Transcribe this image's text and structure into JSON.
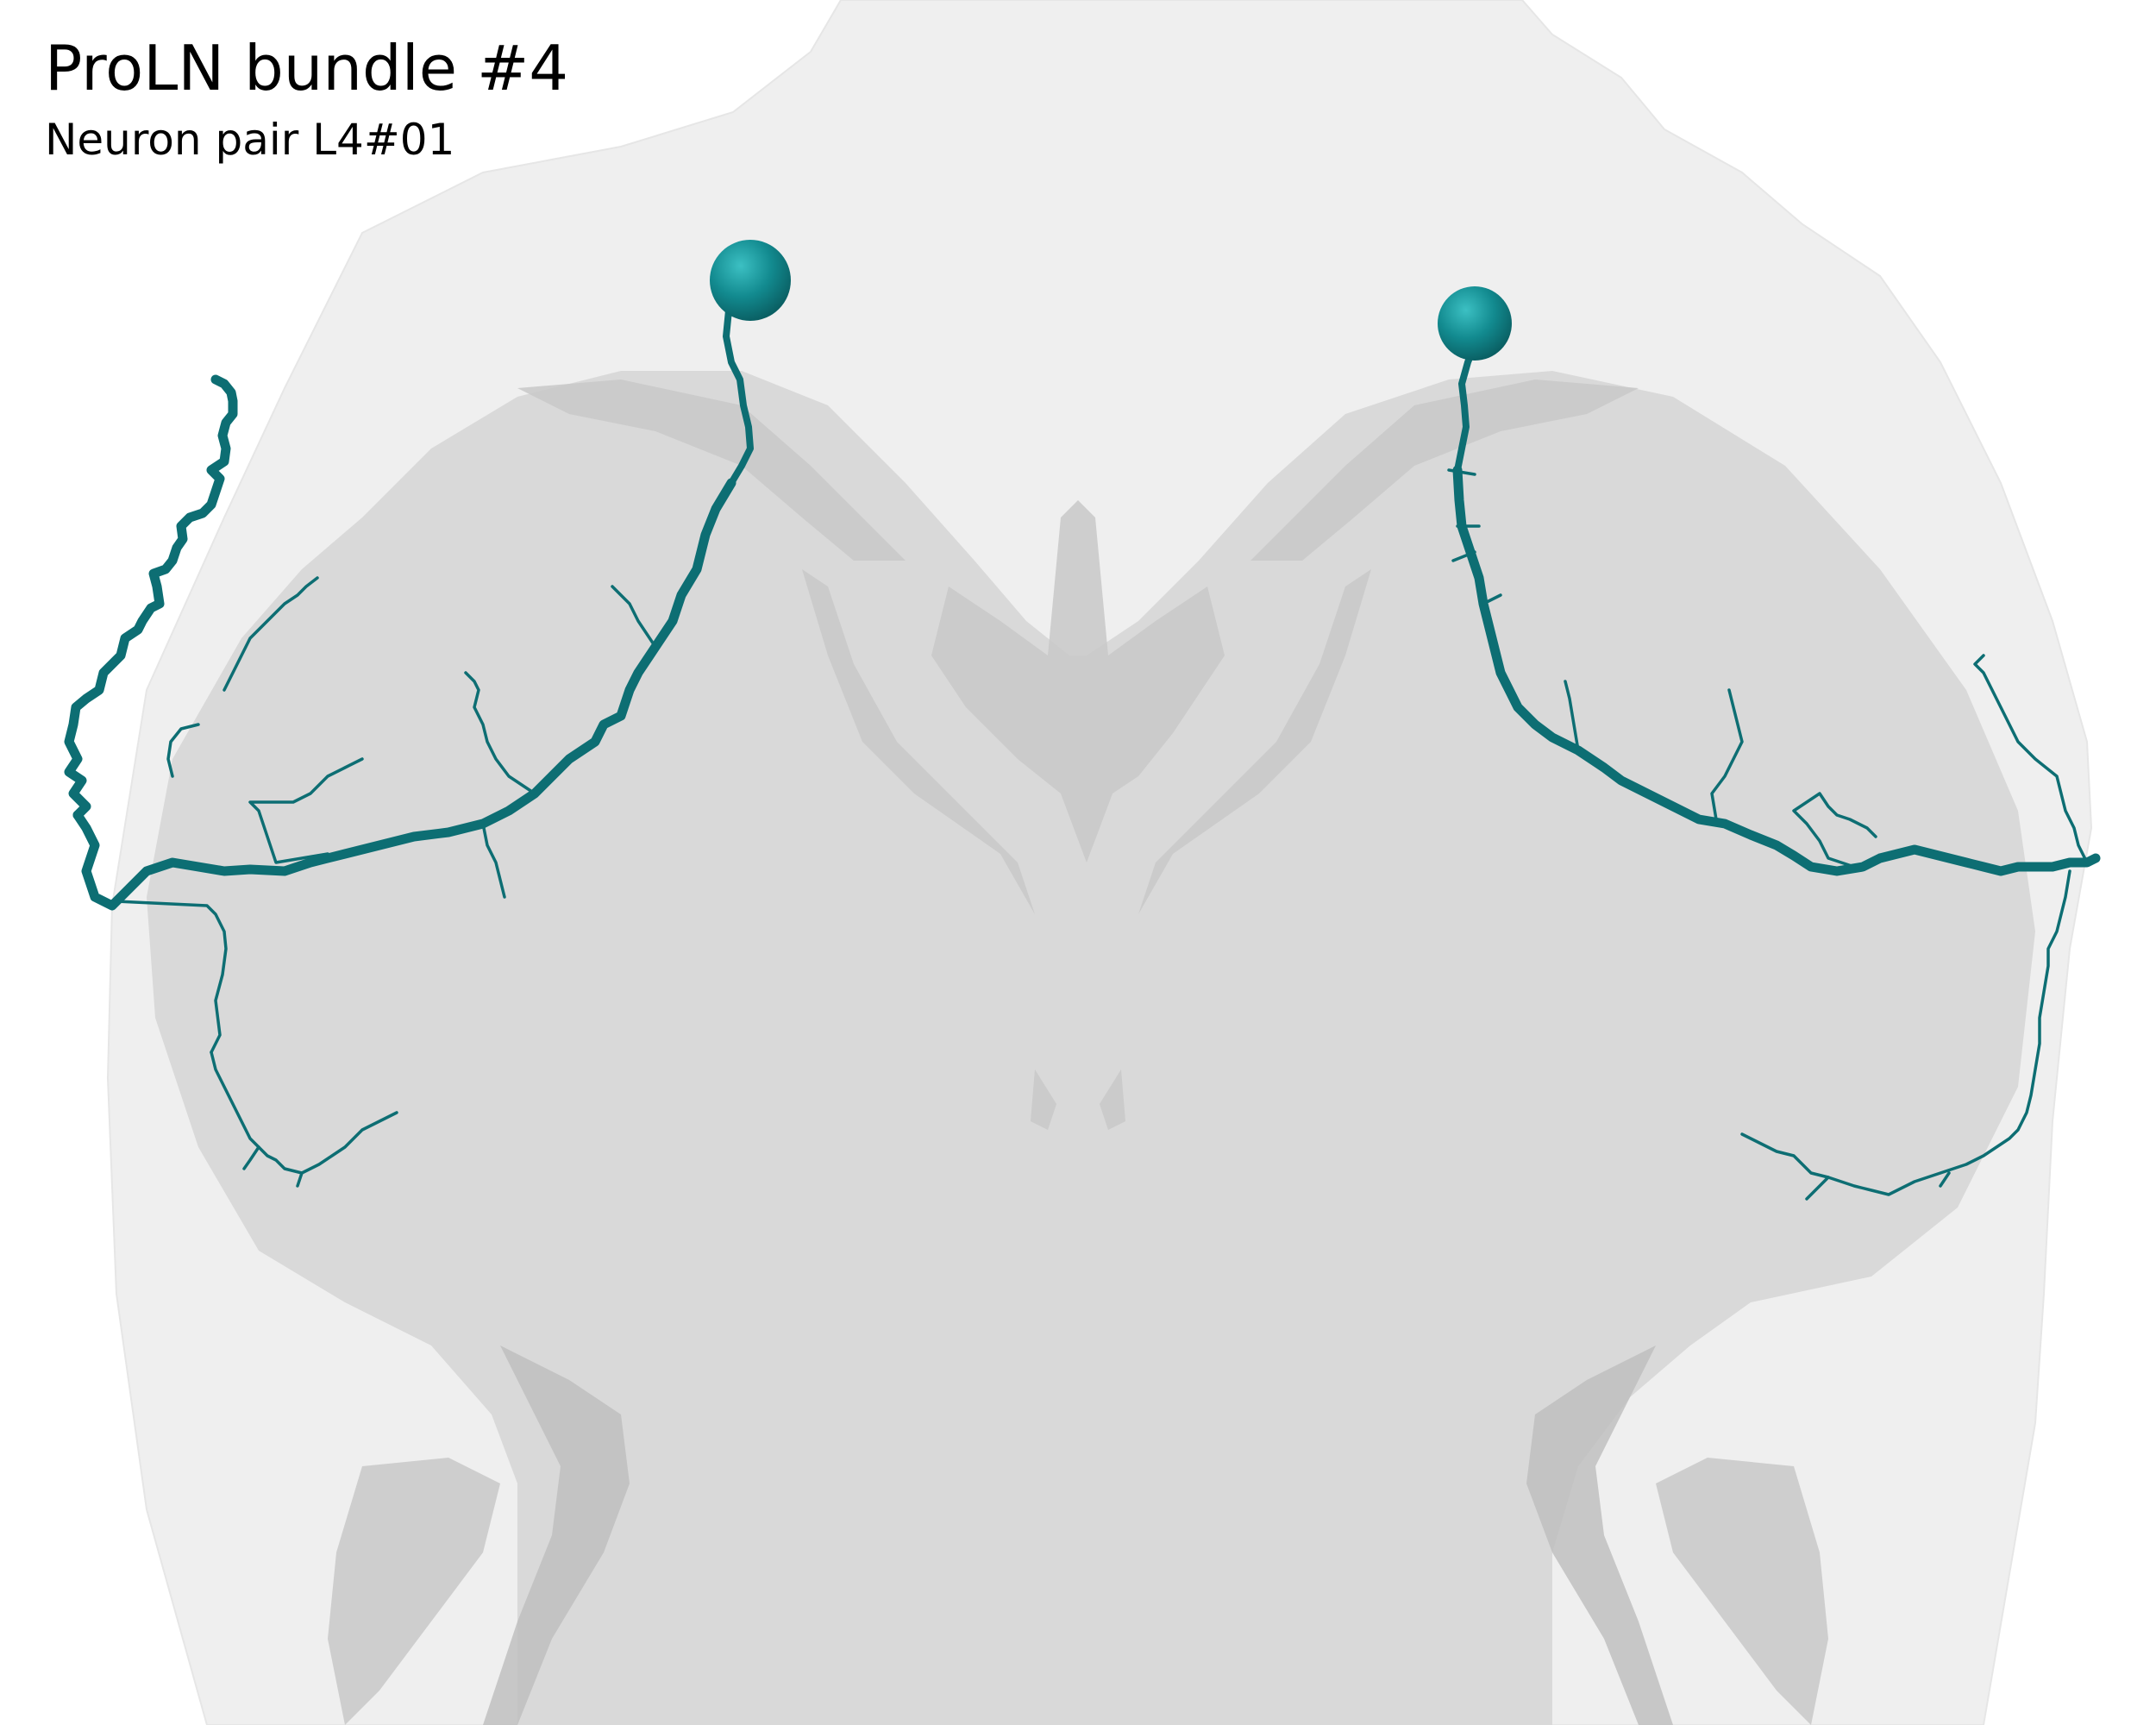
{
  "title": "ProLN bundle #4",
  "subtitle": "Neuron pair L4#01",
  "colors": {
    "neuron": "#0d6e73",
    "soma_highlight": "#2fb1b5",
    "body_outline": "#efefef",
    "neuropil": "#d9d9d9",
    "background": "#ffffff"
  }
}
